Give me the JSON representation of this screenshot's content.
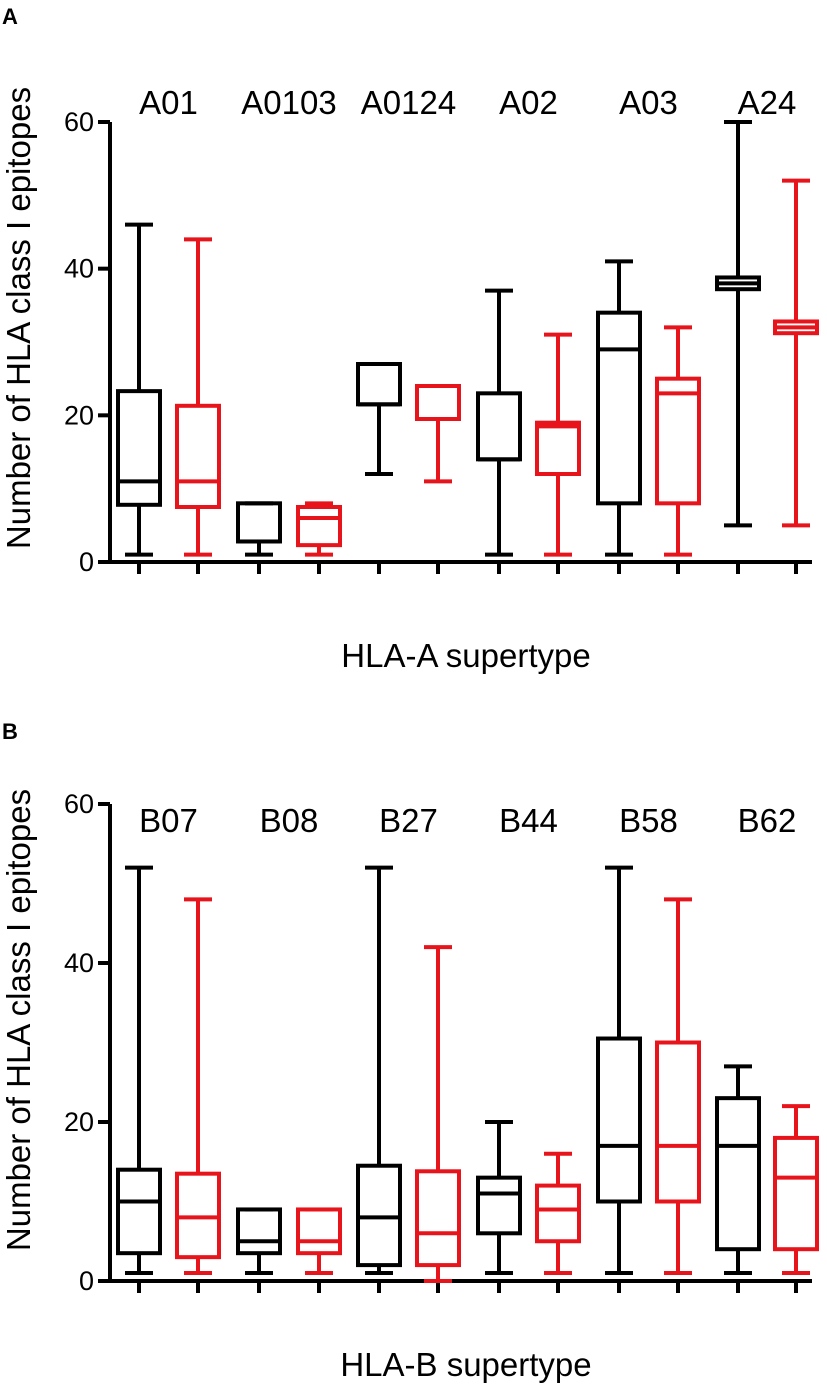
{
  "chart_data": [
    {
      "type": "boxplot",
      "panel": "A",
      "ylabel": "Number of HLA class I epitopes",
      "xlabel": "HLA-A supertype",
      "ylim": [
        0,
        60
      ],
      "yticks": [
        "0",
        "20",
        "40",
        "60"
      ],
      "series_colors": [
        "#000000",
        "#e8141b"
      ],
      "groups": [
        {
          "label": "A01",
          "boxes": [
            {
              "min": 1,
              "q1": 7.8,
              "median": 11,
              "q3": 23.3,
              "max": 46
            },
            {
              "min": 1,
              "q1": 7.5,
              "median": 11,
              "q3": 21.3,
              "max": 44
            }
          ]
        },
        {
          "label": "A0103",
          "boxes": [
            {
              "min": 1,
              "q1": 2.8,
              "median": 2.8,
              "q3": 8,
              "max": 8
            },
            {
              "min": 1,
              "q1": 2.3,
              "median": 6,
              "q3": 7.5,
              "max": 8
            }
          ]
        },
        {
          "label": "A0124",
          "boxes": [
            {
              "min": 12,
              "q1": 21.5,
              "median": 21.5,
              "q3": 27,
              "max": 27
            },
            {
              "min": 11,
              "q1": 19.5,
              "median": 19.5,
              "q3": 24,
              "max": 24
            }
          ]
        },
        {
          "label": "A02",
          "boxes": [
            {
              "min": 1,
              "q1": 14,
              "median": 14,
              "q3": 23,
              "max": 37
            },
            {
              "min": 1,
              "q1": 12,
              "median": 18.5,
              "q3": 19,
              "max": 31
            }
          ]
        },
        {
          "label": "A03",
          "boxes": [
            {
              "min": 1,
              "q1": 8,
              "median": 29,
              "q3": 34,
              "max": 41
            },
            {
              "min": 1,
              "q1": 8,
              "median": 23,
              "q3": 25,
              "max": 32
            }
          ]
        },
        {
          "label": "A24",
          "boxes": [
            {
              "min": 5,
              "q1": 37.2,
              "median": 38,
              "q3": 38.8,
              "max": 60
            },
            {
              "min": 5,
              "q1": 31.2,
              "median": 32,
              "q3": 32.8,
              "max": 52
            }
          ]
        }
      ]
    },
    {
      "type": "boxplot",
      "panel": "B",
      "ylabel": "Number of HLA class I epitopes",
      "xlabel": "HLA-B supertype",
      "ylim": [
        0,
        60
      ],
      "yticks": [
        "0",
        "20",
        "40",
        "60"
      ],
      "series_colors": [
        "#000000",
        "#e8141b"
      ],
      "groups": [
        {
          "label": "B07",
          "boxes": [
            {
              "min": 1,
              "q1": 3.5,
              "median": 10,
              "q3": 14,
              "max": 52
            },
            {
              "min": 1,
              "q1": 3,
              "median": 8,
              "q3": 13.5,
              "max": 48
            }
          ]
        },
        {
          "label": "B08",
          "boxes": [
            {
              "min": 1,
              "q1": 3.5,
              "median": 5,
              "q3": 9,
              "max": 9
            },
            {
              "min": 1,
              "q1": 3.5,
              "median": 5,
              "q3": 9,
              "max": 9
            }
          ]
        },
        {
          "label": "B27",
          "boxes": [
            {
              "min": 1,
              "q1": 2,
              "median": 8,
              "q3": 14.5,
              "max": 52
            },
            {
              "min": 0,
              "q1": 2,
              "median": 6,
              "q3": 13.8,
              "max": 42
            }
          ]
        },
        {
          "label": "B44",
          "boxes": [
            {
              "min": 1,
              "q1": 6,
              "median": 11,
              "q3": 13,
              "max": 20
            },
            {
              "min": 1,
              "q1": 5,
              "median": 9,
              "q3": 12,
              "max": 16
            }
          ]
        },
        {
          "label": "B58",
          "boxes": [
            {
              "min": 1,
              "q1": 10,
              "median": 17,
              "q3": 30.5,
              "max": 52
            },
            {
              "min": 1,
              "q1": 10,
              "median": 17,
              "q3": 30,
              "max": 48
            }
          ]
        },
        {
          "label": "B62",
          "boxes": [
            {
              "min": 1,
              "q1": 4,
              "median": 17,
              "q3": 23,
              "max": 27
            },
            {
              "min": 1,
              "q1": 4,
              "median": 13,
              "q3": 18,
              "max": 22
            }
          ]
        }
      ]
    }
  ]
}
